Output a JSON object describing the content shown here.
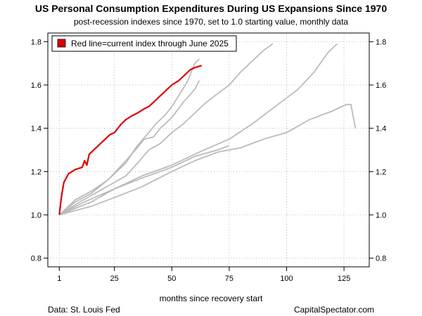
{
  "chart_data": {
    "type": "line",
    "title": "US Personal Consumption Expenditures During US Expansions Since 1970",
    "subtitle": "post-recession indexes since 1970, set to 1.0 starting value, monthly data",
    "xlabel": "months since recovery start",
    "ylabel": "",
    "xlim": [
      -4,
      136
    ],
    "ylim": [
      0.76,
      1.84
    ],
    "x_ticks": [
      1,
      25,
      50,
      75,
      100,
      125
    ],
    "y_ticks": [
      0.8,
      1.0,
      1.2,
      1.4,
      1.6,
      1.8
    ],
    "y_ticks_right": true,
    "grid": true,
    "legend_position": "top-left",
    "legend": [
      {
        "label": "Red line=current index through June 2025",
        "color": "#dd0000"
      }
    ],
    "series": [
      {
        "color": "#dd0000",
        "points": [
          [
            1,
            1.0
          ],
          [
            2,
            1.09
          ],
          [
            3,
            1.15
          ],
          [
            5,
            1.19
          ],
          [
            8,
            1.21
          ],
          [
            11,
            1.22
          ],
          [
            12,
            1.25
          ],
          [
            13,
            1.23
          ],
          [
            14,
            1.28
          ],
          [
            17,
            1.31
          ],
          [
            20,
            1.34
          ],
          [
            23,
            1.37
          ],
          [
            25,
            1.38
          ],
          [
            28,
            1.42
          ],
          [
            30,
            1.44
          ],
          [
            33,
            1.46
          ],
          [
            35,
            1.47
          ],
          [
            38,
            1.49
          ],
          [
            40,
            1.5
          ],
          [
            42,
            1.52
          ],
          [
            45,
            1.55
          ],
          [
            48,
            1.58
          ],
          [
            50,
            1.6
          ],
          [
            53,
            1.62
          ],
          [
            55,
            1.64
          ],
          [
            58,
            1.67
          ],
          [
            60,
            1.68
          ],
          [
            63,
            1.69
          ]
        ]
      },
      {
        "color": "#bbbbbb",
        "points": [
          [
            1,
            1.0
          ],
          [
            8,
            1.07
          ],
          [
            15,
            1.11
          ],
          [
            22,
            1.16
          ],
          [
            30,
            1.24
          ],
          [
            35,
            1.32
          ],
          [
            40,
            1.38
          ],
          [
            43,
            1.42
          ],
          [
            47,
            1.46
          ],
          [
            50,
            1.5
          ],
          [
            53,
            1.55
          ],
          [
            57,
            1.62
          ],
          [
            60,
            1.7
          ],
          [
            62,
            1.72
          ]
        ]
      },
      {
        "color": "#bbbbbb",
        "points": [
          [
            1,
            1.0
          ],
          [
            8,
            1.06
          ],
          [
            15,
            1.1
          ],
          [
            22,
            1.16
          ],
          [
            30,
            1.25
          ],
          [
            35,
            1.31
          ],
          [
            38,
            1.35
          ],
          [
            42,
            1.36
          ],
          [
            45,
            1.4
          ],
          [
            50,
            1.45
          ],
          [
            55,
            1.52
          ],
          [
            60,
            1.58
          ],
          [
            62,
            1.62
          ]
        ]
      },
      {
        "color": "#bbbbbb",
        "points": [
          [
            1,
            1.0
          ],
          [
            10,
            1.06
          ],
          [
            20,
            1.12
          ],
          [
            30,
            1.18
          ],
          [
            36,
            1.25
          ],
          [
            40,
            1.3
          ],
          [
            45,
            1.33
          ],
          [
            50,
            1.38
          ],
          [
            55,
            1.42
          ],
          [
            60,
            1.47
          ],
          [
            65,
            1.52
          ],
          [
            70,
            1.56
          ],
          [
            75,
            1.6
          ],
          [
            80,
            1.66
          ],
          [
            85,
            1.71
          ],
          [
            90,
            1.76
          ],
          [
            94,
            1.79
          ]
        ]
      },
      {
        "color": "#bbbbbb",
        "points": [
          [
            1,
            1.0
          ],
          [
            12,
            1.06
          ],
          [
            25,
            1.12
          ],
          [
            37,
            1.18
          ],
          [
            50,
            1.23
          ],
          [
            62,
            1.29
          ],
          [
            75,
            1.35
          ],
          [
            85,
            1.42
          ],
          [
            95,
            1.5
          ],
          [
            105,
            1.58
          ],
          [
            112,
            1.66
          ],
          [
            118,
            1.75
          ],
          [
            122,
            1.79
          ]
        ]
      },
      {
        "color": "#bbbbbb",
        "points": [
          [
            1,
            1.0
          ],
          [
            15,
            1.06
          ],
          [
            25,
            1.12
          ],
          [
            37,
            1.17
          ],
          [
            50,
            1.22
          ],
          [
            60,
            1.27
          ],
          [
            70,
            1.3
          ],
          [
            75,
            1.32
          ]
        ]
      },
      {
        "color": "#bbbbbb",
        "points": [
          [
            1,
            1.0
          ],
          [
            15,
            1.04
          ],
          [
            25,
            1.08
          ],
          [
            37,
            1.13
          ],
          [
            50,
            1.2
          ],
          [
            60,
            1.25
          ],
          [
            70,
            1.29
          ],
          [
            80,
            1.31
          ],
          [
            90,
            1.35
          ],
          [
            100,
            1.38
          ],
          [
            105,
            1.41
          ],
          [
            110,
            1.44
          ],
          [
            115,
            1.46
          ],
          [
            120,
            1.48
          ],
          [
            126,
            1.51
          ],
          [
            128,
            1.51
          ],
          [
            130,
            1.4
          ]
        ]
      }
    ]
  }
}
